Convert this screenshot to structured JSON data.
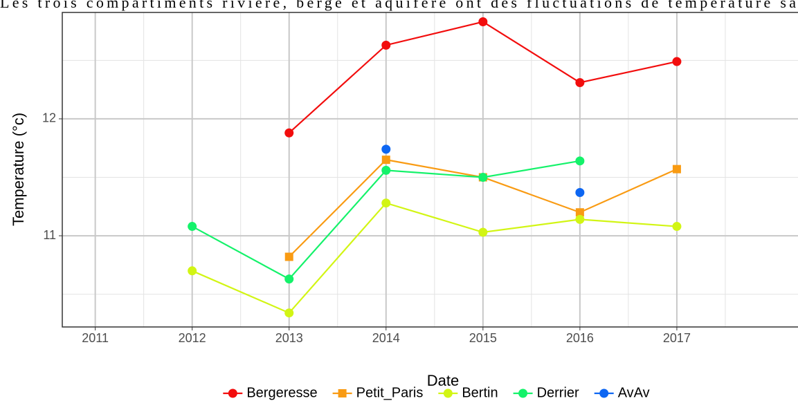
{
  "header_text": "Les trois compartiments rivière, berge et aquifère ont des fluctuations de température sa",
  "chart_data": {
    "type": "line",
    "x_label": "Date",
    "y_label": "Temperature (°c)",
    "x": [
      2012,
      2013,
      2014,
      2015,
      2016,
      2017
    ],
    "xlim": [
      2010.66,
      2018.25
    ],
    "xticks": [
      2011,
      2012,
      2013,
      2014,
      2015,
      2016,
      2017
    ],
    "minor_xticks": [
      2011.5,
      2012.5,
      2013.5,
      2014.5,
      2015.5,
      2016.5,
      2017.5
    ],
    "ylim": [
      10.22,
      12.91
    ],
    "yticks": [
      11,
      12
    ],
    "minor_yticks": [
      10.5,
      11.5,
      12.5
    ],
    "grid": true,
    "legend": "bottom",
    "series": [
      {
        "name": "Bergeresse",
        "color": "#f20d0d",
        "shape": "circle",
        "values": [
          null,
          11.88,
          12.63,
          12.83,
          12.31,
          12.49
        ]
      },
      {
        "name": "Petit_Paris",
        "color": "#f99b13",
        "shape": "square",
        "values": [
          null,
          10.82,
          11.65,
          11.5,
          11.2,
          11.57
        ]
      },
      {
        "name": "Bertin",
        "color": "#d2f514",
        "shape": "circle",
        "values": [
          10.7,
          10.34,
          11.28,
          11.03,
          11.14,
          11.08
        ]
      },
      {
        "name": "Derrier",
        "color": "#14f26a",
        "shape": "circle",
        "values": [
          11.08,
          10.63,
          11.56,
          11.5,
          11.64,
          null
        ]
      },
      {
        "name": "AvAv",
        "color": "#0d66f2",
        "shape": "circle",
        "values": [
          null,
          null,
          11.74,
          null,
          11.37,
          null
        ]
      }
    ]
  }
}
